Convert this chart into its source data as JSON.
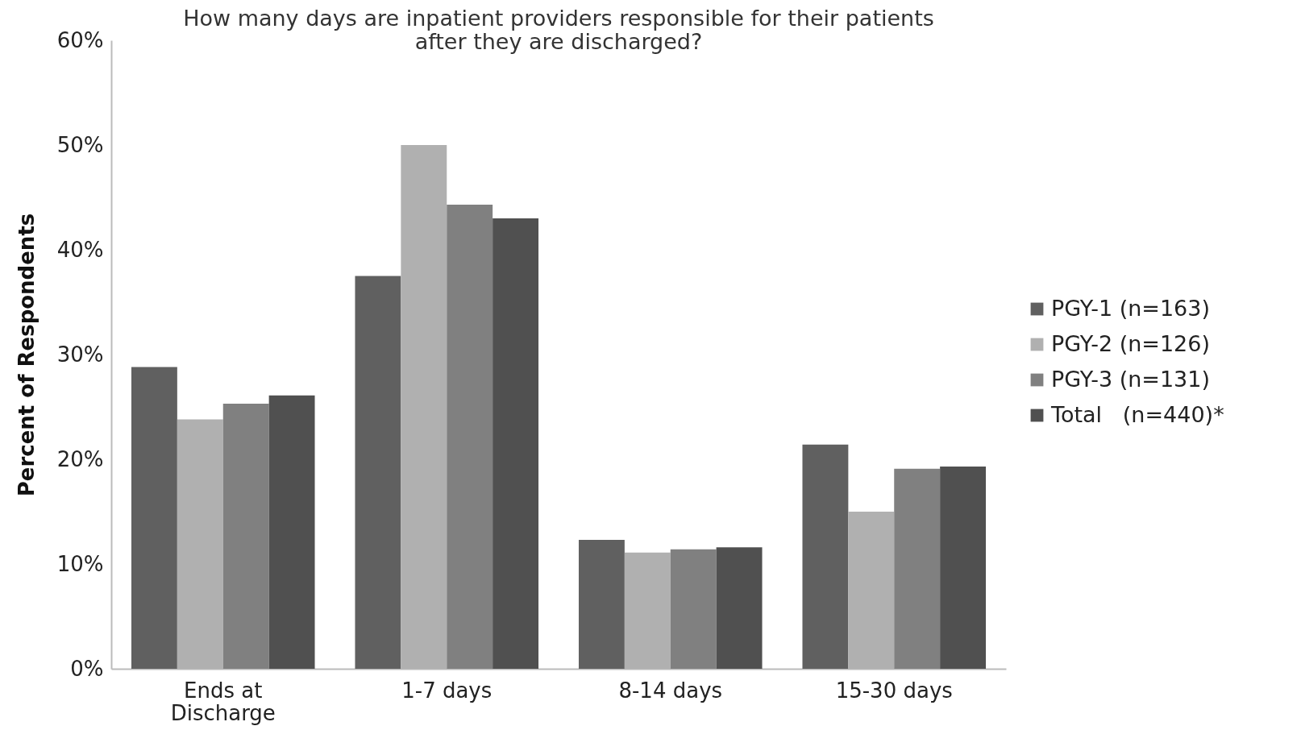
{
  "chart_data": {
    "type": "bar",
    "title": "How many days are inpatient providers responsible for their patients after they are discharged?",
    "ylabel": "Percent of Respondents",
    "categories": [
      "Ends at Discharge",
      "1-7 days",
      "8-14 days",
      "15-30 days"
    ],
    "series": [
      {
        "name": "PGY-1 (n=163)",
        "color": "#606060",
        "values": [
          28.8,
          37.5,
          12.3,
          21.4
        ]
      },
      {
        "name": "PGY-2 (n=126)",
        "color": "#b0b0b0",
        "values": [
          23.8,
          50.0,
          11.1,
          15.0
        ]
      },
      {
        "name": "PGY-3 (n=131)",
        "color": "#808080",
        "values": [
          25.3,
          44.3,
          11.4,
          19.1
        ]
      },
      {
        "name": "Total   (n=440)*",
        "color": "#505050",
        "values": [
          26.1,
          43.0,
          11.6,
          19.3
        ]
      }
    ],
    "ylim": [
      0,
      60
    ],
    "yticks": [
      {
        "value": 0,
        "label": "0%"
      },
      {
        "value": 10,
        "label": "10%"
      },
      {
        "value": 20,
        "label": "20%"
      },
      {
        "value": 30,
        "label": "30%"
      },
      {
        "value": 40,
        "label": "40%"
      },
      {
        "value": 50,
        "label": "50%"
      },
      {
        "value": 60,
        "label": "60%"
      }
    ],
    "grid": false,
    "legend": "right"
  }
}
